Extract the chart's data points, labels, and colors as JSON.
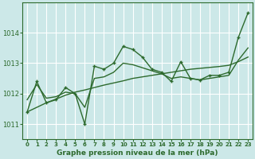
{
  "title": "Graphe pression niveau de la mer (hPa)",
  "bg_color": "#cce8e8",
  "grid_color": "#ffffff",
  "line_color": "#2d6a2d",
  "ylim": [
    1010.5,
    1015.0
  ],
  "xlim": [
    -0.5,
    23.5
  ],
  "yticks": [
    1011,
    1012,
    1013,
    1014
  ],
  "xticks": [
    0,
    1,
    2,
    3,
    4,
    5,
    6,
    7,
    8,
    9,
    10,
    11,
    12,
    13,
    14,
    15,
    16,
    17,
    18,
    19,
    20,
    21,
    22,
    23
  ],
  "jagged": [
    1011.4,
    1012.4,
    1011.7,
    1011.8,
    1012.2,
    1012.0,
    1011.0,
    1012.9,
    1012.8,
    1013.0,
    1013.55,
    1013.45,
    1013.2,
    1012.8,
    1012.7,
    1012.4,
    1013.05,
    1012.5,
    1012.45,
    1012.6,
    1012.6,
    1012.7,
    1013.85,
    1014.65
  ],
  "smooth": [
    1011.8,
    1012.3,
    1011.85,
    1011.9,
    1012.05,
    1012.0,
    1011.55,
    1012.5,
    1012.55,
    1012.7,
    1013.0,
    1012.95,
    1012.85,
    1012.75,
    1012.65,
    1012.5,
    1012.55,
    1012.5,
    1012.45,
    1012.5,
    1012.55,
    1012.6,
    1013.1,
    1013.5
  ],
  "trend": [
    1011.4,
    1011.55,
    1011.7,
    1011.82,
    1011.95,
    1012.05,
    1012.12,
    1012.2,
    1012.28,
    1012.35,
    1012.42,
    1012.5,
    1012.55,
    1012.6,
    1012.65,
    1012.7,
    1012.75,
    1012.8,
    1012.83,
    1012.86,
    1012.89,
    1012.93,
    1013.05,
    1013.2
  ]
}
